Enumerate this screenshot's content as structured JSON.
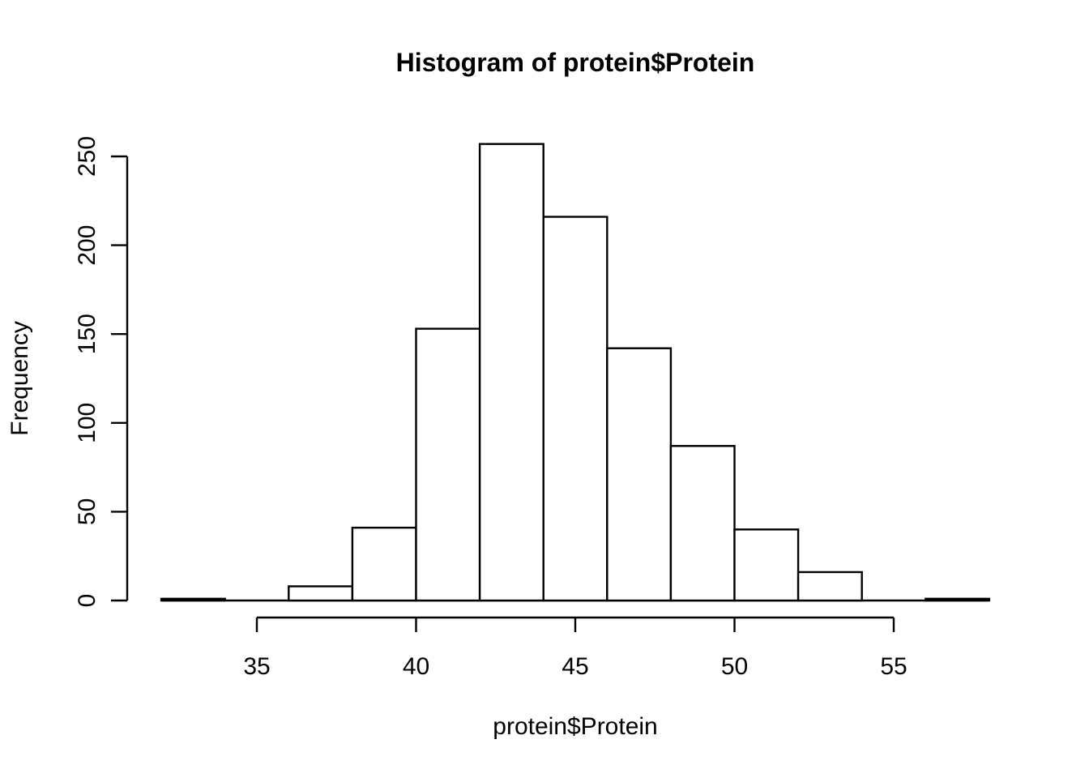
{
  "figure": {
    "title": "Histogram of protein$Protein",
    "xlabel": "protein$Protein",
    "ylabel": "Frequency"
  },
  "chart_data": {
    "type": "bar",
    "subtype": "histogram",
    "title": "Histogram of protein$Protein",
    "xlabel": "protein$Protein",
    "ylabel": "Frequency",
    "breaks": [
      32,
      34,
      36,
      38,
      40,
      42,
      44,
      46,
      48,
      50,
      52,
      54,
      56,
      58
    ],
    "counts": [
      1,
      0,
      8,
      41,
      153,
      257,
      216,
      142,
      87,
      40,
      16,
      0,
      1
    ],
    "x_ticks": [
      35,
      40,
      45,
      50,
      55
    ],
    "y_ticks": [
      0,
      50,
      100,
      150,
      200,
      250
    ],
    "xlim": [
      32,
      58
    ],
    "ylim": [
      0,
      250
    ],
    "grid": false,
    "legend": null,
    "colors": {
      "bar_fill": "#ffffff",
      "bar_stroke": "#000000",
      "axis": "#000000",
      "text": "#000000",
      "background": "#ffffff"
    }
  }
}
